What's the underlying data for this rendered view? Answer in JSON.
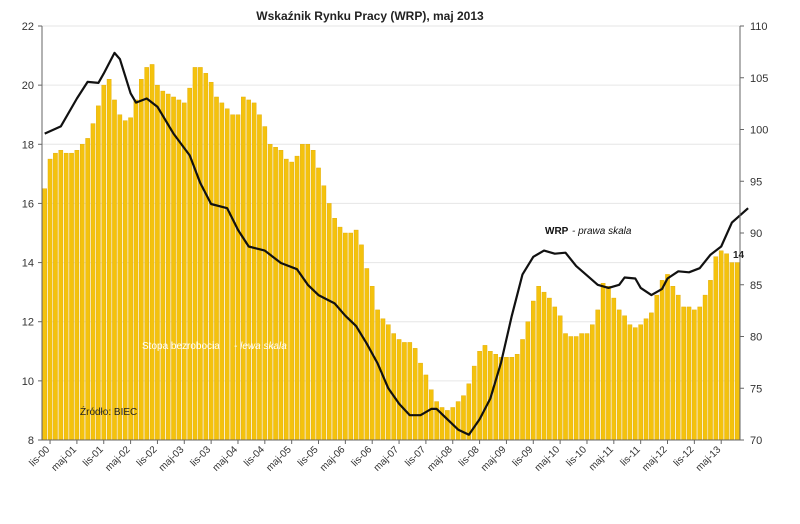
{
  "chart_data": {
    "title": "Wskaźnik Rynku Pracy (WRP), maj 2013",
    "type": "bar+line",
    "colors": {
      "bars": "#f4c20d",
      "bars_edge": "#e0a800",
      "line": "#111111"
    },
    "y_left": {
      "ylim": [
        8,
        22
      ],
      "ticks": [
        "8",
        "10",
        "12",
        "14",
        "16",
        "18",
        "20",
        "22"
      ]
    },
    "y_right": {
      "ylim": [
        70,
        110
      ],
      "ticks": [
        "70",
        "75",
        "80",
        "85",
        "90",
        "95",
        "100",
        "105",
        "110"
      ]
    },
    "x_tick_labels": [
      "lis-00",
      "maj-01",
      "lis-01",
      "maj-02",
      "lis-02",
      "maj-03",
      "lis-03",
      "maj-04",
      "lis-04",
      "maj-05",
      "lis-05",
      "maj-06",
      "lis-06",
      "maj-07",
      "lis-07",
      "maj-08",
      "lis-08",
      "maj-09",
      "lis-09",
      "maj-10",
      "lis-10",
      "maj-11",
      "lis-11",
      "maj-12",
      "lis-12",
      "maj-13"
    ],
    "series": [
      {
        "name": "Stopa bezrobocia",
        "axis": "left",
        "kind": "bar",
        "values": [
          16.5,
          17.5,
          17.7,
          17.8,
          17.7,
          17.7,
          17.8,
          18.0,
          18.2,
          18.7,
          19.3,
          20.0,
          20.2,
          19.5,
          19.0,
          18.8,
          18.9,
          19.5,
          20.2,
          20.6,
          20.7,
          20.0,
          19.8,
          19.7,
          19.6,
          19.5,
          19.4,
          19.9,
          20.6,
          20.6,
          20.4,
          20.1,
          19.6,
          19.4,
          19.2,
          19.0,
          19.0,
          19.6,
          19.5,
          19.4,
          19.0,
          18.6,
          18.0,
          17.9,
          17.8,
          17.5,
          17.4,
          17.6,
          18.0,
          18.0,
          17.8,
          17.2,
          16.6,
          16.0,
          15.5,
          15.2,
          15.0,
          15.0,
          15.1,
          14.6,
          13.8,
          13.2,
          12.4,
          12.1,
          11.9,
          11.6,
          11.4,
          11.3,
          11.3,
          11.1,
          10.6,
          10.2,
          9.7,
          9.3,
          9.1,
          9.0,
          9.1,
          9.3,
          9.5,
          9.9,
          10.5,
          11.0,
          11.2,
          11.0,
          10.9,
          10.8,
          10.8,
          10.8,
          10.9,
          11.4,
          12.0,
          12.7,
          13.2,
          13.0,
          12.8,
          12.5,
          12.2,
          11.6,
          11.5,
          11.5,
          11.6,
          11.6,
          11.9,
          12.4,
          13.3,
          13.2,
          12.8,
          12.4,
          12.2,
          11.9,
          11.8,
          11.9,
          12.1,
          12.3,
          12.9,
          13.4,
          13.6,
          13.2,
          12.9,
          12.5,
          12.5,
          12.4,
          12.5,
          12.9,
          13.4,
          14.2,
          14.4,
          14.3,
          14.0,
          14.0
        ]
      },
      {
        "name": "WRP",
        "axis": "right",
        "kind": "line",
        "points": [
          [
            0,
            99.6
          ],
          [
            3,
            100.3
          ],
          [
            6,
            103.0
          ],
          [
            8,
            104.6
          ],
          [
            10,
            104.5
          ],
          [
            11,
            105.4
          ],
          [
            13,
            107.4
          ],
          [
            14,
            106.8
          ],
          [
            16,
            103.5
          ],
          [
            17,
            102.6
          ],
          [
            19,
            103.0
          ],
          [
            21,
            102.2
          ],
          [
            24,
            99.6
          ],
          [
            27,
            97.5
          ],
          [
            29,
            94.8
          ],
          [
            31,
            92.8
          ],
          [
            34,
            92.4
          ],
          [
            36,
            90.3
          ],
          [
            38,
            88.7
          ],
          [
            41,
            88.3
          ],
          [
            44,
            87.1
          ],
          [
            47,
            86.5
          ],
          [
            49,
            85.0
          ],
          [
            51,
            84.0
          ],
          [
            54,
            83.2
          ],
          [
            56,
            82.0
          ],
          [
            58,
            81.0
          ],
          [
            60,
            79.3
          ],
          [
            62,
            77.4
          ],
          [
            64,
            75.0
          ],
          [
            66,
            73.5
          ],
          [
            68,
            72.4
          ],
          [
            70,
            72.4
          ],
          [
            72,
            73.0
          ],
          [
            73,
            73.0
          ],
          [
            75,
            72.0
          ],
          [
            77,
            71.0
          ],
          [
            79,
            70.5
          ],
          [
            81,
            72.0
          ],
          [
            83,
            74.0
          ],
          [
            85,
            77.5
          ],
          [
            87,
            82.0
          ],
          [
            89,
            86.0
          ],
          [
            91,
            87.7
          ],
          [
            93,
            88.3
          ],
          [
            95,
            88.0
          ],
          [
            97,
            88.1
          ],
          [
            99,
            86.8
          ],
          [
            101,
            85.9
          ],
          [
            103,
            85.0
          ],
          [
            105,
            84.7
          ],
          [
            107,
            85.0
          ],
          [
            108,
            85.7
          ],
          [
            110,
            85.6
          ],
          [
            111,
            84.7
          ],
          [
            113,
            84.0
          ],
          [
            115,
            84.6
          ],
          [
            116,
            85.6
          ],
          [
            118,
            86.3
          ],
          [
            120,
            86.2
          ],
          [
            122,
            86.6
          ],
          [
            124,
            87.9
          ],
          [
            126,
            88.7
          ],
          [
            128,
            91.0
          ],
          [
            131,
            92.4
          ]
        ]
      }
    ],
    "annotations": {
      "wrp_name": "WRP",
      "wrp_scale": "- prawa skala",
      "bars_name": "Stopa bezrobocia",
      "bars_scale": "- lewa skala",
      "source": "Źródło: BIEC",
      "end_label": "14"
    }
  }
}
